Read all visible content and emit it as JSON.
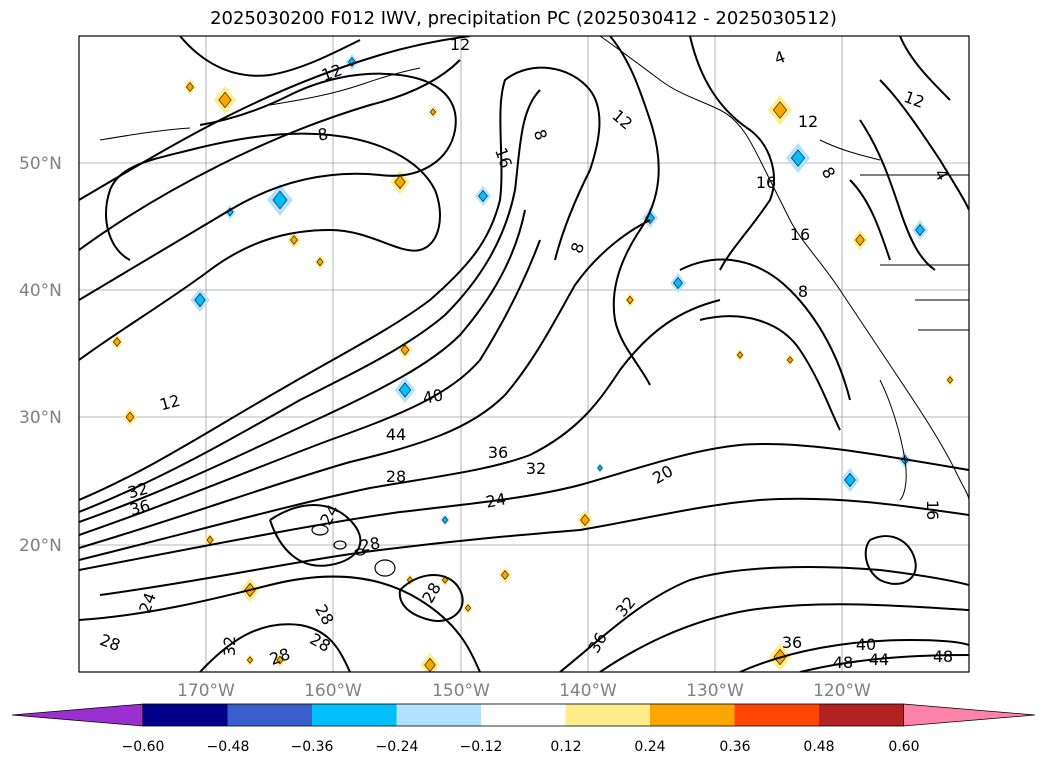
{
  "title": "2025030200 F012 IWV, precipitation PC (2025030412 - 2025030512)",
  "lat_labels": [
    "50°N",
    "40°N",
    "30°N",
    "20°N"
  ],
  "lon_labels": [
    "170°W",
    "160°W",
    "150°W",
    "140°W",
    "130°W",
    "120°W"
  ],
  "colorbar": {
    "ticks": [
      "−0.60",
      "−0.48",
      "−0.36",
      "−0.24",
      "−0.12",
      "0.12",
      "0.24",
      "0.36",
      "0.48",
      "0.60"
    ],
    "colors": [
      "#9b30d0",
      "#00008b",
      "#3a5fcd",
      "#00bfff",
      "#b0e2ff",
      "#ffffff",
      "#ffec8b",
      "#ffa500",
      "#ff4500",
      "#b22222",
      "#ff82ab"
    ]
  },
  "contour_labels": [
    {
      "text": "12"
    },
    {
      "text": "12"
    },
    {
      "text": "8"
    },
    {
      "text": "16"
    },
    {
      "text": "8"
    },
    {
      "text": "12"
    },
    {
      "text": "8"
    },
    {
      "text": "12"
    },
    {
      "text": "16"
    },
    {
      "text": "16"
    },
    {
      "text": "8"
    },
    {
      "text": "12"
    },
    {
      "text": "40"
    },
    {
      "text": "44"
    },
    {
      "text": "36"
    },
    {
      "text": "32"
    },
    {
      "text": "28"
    },
    {
      "text": "24"
    },
    {
      "text": "20"
    },
    {
      "text": "32"
    },
    {
      "text": "36"
    },
    {
      "text": "24"
    },
    {
      "text": "28"
    },
    {
      "text": "24"
    },
    {
      "text": "28"
    },
    {
      "text": "28"
    },
    {
      "text": "32"
    },
    {
      "text": "28"
    },
    {
      "text": "28"
    },
    {
      "text": "28"
    },
    {
      "text": "32"
    },
    {
      "text": "36"
    },
    {
      "text": "36"
    },
    {
      "text": "40"
    },
    {
      "text": "44"
    },
    {
      "text": "48"
    },
    {
      "text": "48"
    },
    {
      "text": "16"
    },
    {
      "text": "8"
    },
    {
      "text": "4"
    },
    {
      "text": "4"
    },
    {
      "text": "12"
    }
  ],
  "precip_blobs": [
    {
      "sign": "pos"
    },
    {
      "sign": "pos"
    },
    {
      "sign": "neg"
    },
    {
      "sign": "pos"
    },
    {
      "sign": "neg"
    },
    {
      "sign": "neg"
    },
    {
      "sign": "pos"
    },
    {
      "sign": "pos"
    },
    {
      "sign": "neg"
    },
    {
      "sign": "pos"
    },
    {
      "sign": "neg"
    },
    {
      "sign": "neg"
    },
    {
      "sign": "pos"
    },
    {
      "sign": "neg"
    },
    {
      "sign": "pos"
    },
    {
      "sign": "pos"
    },
    {
      "sign": "neg"
    },
    {
      "sign": "pos"
    },
    {
      "sign": "pos"
    },
    {
      "sign": "neg"
    },
    {
      "sign": "pos"
    },
    {
      "sign": "pos"
    },
    {
      "sign": "pos"
    },
    {
      "sign": "neg"
    },
    {
      "sign": "pos"
    },
    {
      "sign": "neg"
    },
    {
      "sign": "pos"
    },
    {
      "sign": "pos"
    },
    {
      "sign": "neg"
    },
    {
      "sign": "pos"
    },
    {
      "sign": "pos"
    },
    {
      "sign": "pos"
    },
    {
      "sign": "pos"
    },
    {
      "sign": "neg"
    },
    {
      "sign": "pos"
    },
    {
      "sign": "pos"
    },
    {
      "sign": "pos"
    },
    {
      "sign": "neg"
    },
    {
      "sign": "pos"
    },
    {
      "sign": "pos"
    }
  ]
}
